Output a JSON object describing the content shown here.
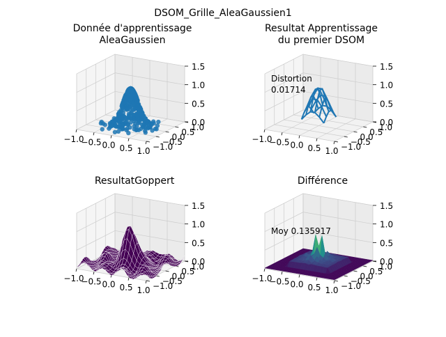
{
  "suptitle": "DSOM_Grille_AleaGaussien1",
  "chart_data": [
    {
      "type": "scatter",
      "title_line1": "Donnée d'apprentissage",
      "title_line2": "AleaGaussien",
      "xlim": [
        -1.0,
        1.0
      ],
      "ylim": [
        -1.0,
        1.0
      ],
      "zlim": [
        0.0,
        1.5
      ],
      "x_ticks": [
        "−1.0",
        "−0.5",
        "0.0",
        "0.5",
        "1.0"
      ],
      "y_ticks": [
        "−1.0",
        "−0.5",
        "0.0",
        "0.5",
        "1.0"
      ],
      "z_ticks": [
        "0.0",
        "0.5",
        "1.0",
        "1.5"
      ],
      "grid": true,
      "color": "#1f77b4",
      "surface": "gaussian z = exp(-(x²+y²)/(2·0.2²)), sampled points",
      "annotation": ""
    },
    {
      "type": "line",
      "title_line1": "Resultat Apprentissage",
      "title_line2": "du premier DSOM",
      "xlim": [
        -1.0,
        1.0
      ],
      "ylim": [
        -1.0,
        1.0
      ],
      "zlim": [
        0.0,
        1.5
      ],
      "x_ticks": [
        "−1.0",
        "−0.5",
        "0.0",
        "0.5",
        "1.0"
      ],
      "y_ticks": [
        "−1.0",
        "−0.5",
        "0.0",
        "0.5",
        "1.0"
      ],
      "z_ticks": [
        "0.0",
        "0.5",
        "1.0",
        "1.5"
      ],
      "grid": true,
      "color": "#1f77b4",
      "annotation_line1": "Distortion",
      "annotation_line2": "0.01714"
    },
    {
      "type": "surface",
      "title_line1": "ResultatGoppert",
      "title_line2": "",
      "xlim": [
        -1.0,
        1.0
      ],
      "ylim": [
        -1.0,
        1.0
      ],
      "zlim": [
        0.0,
        1.5
      ],
      "x_ticks": [
        "−1.0",
        "−0.5",
        "0.0",
        "0.5",
        "1.0"
      ],
      "y_ticks": [
        "−1.0",
        "−0.5",
        "0.0",
        "0.5",
        "1.0"
      ],
      "z_ticks": [
        "0.0",
        "0.5",
        "1.0",
        "1.5"
      ],
      "grid": true,
      "color": "#440154",
      "annotation": ""
    },
    {
      "type": "surface",
      "title_line1": "Différence",
      "title_line2": "",
      "xlim": [
        -1.0,
        1.0
      ],
      "ylim": [
        -1.0,
        1.0
      ],
      "zlim": [
        0.0,
        1.5
      ],
      "x_ticks": [
        "−1.0",
        "−0.5",
        "0.0",
        "0.5",
        "1.0"
      ],
      "y_ticks": [
        "−1.0",
        "−0.5",
        "0.0",
        "0.5",
        "1.0"
      ],
      "z_ticks": [
        "0.0",
        "0.5",
        "1.0",
        "1.5"
      ],
      "grid": true,
      "colormap": "viridis",
      "annotation": "Moy 0.135917",
      "mean_difference": 0.135917
    }
  ]
}
